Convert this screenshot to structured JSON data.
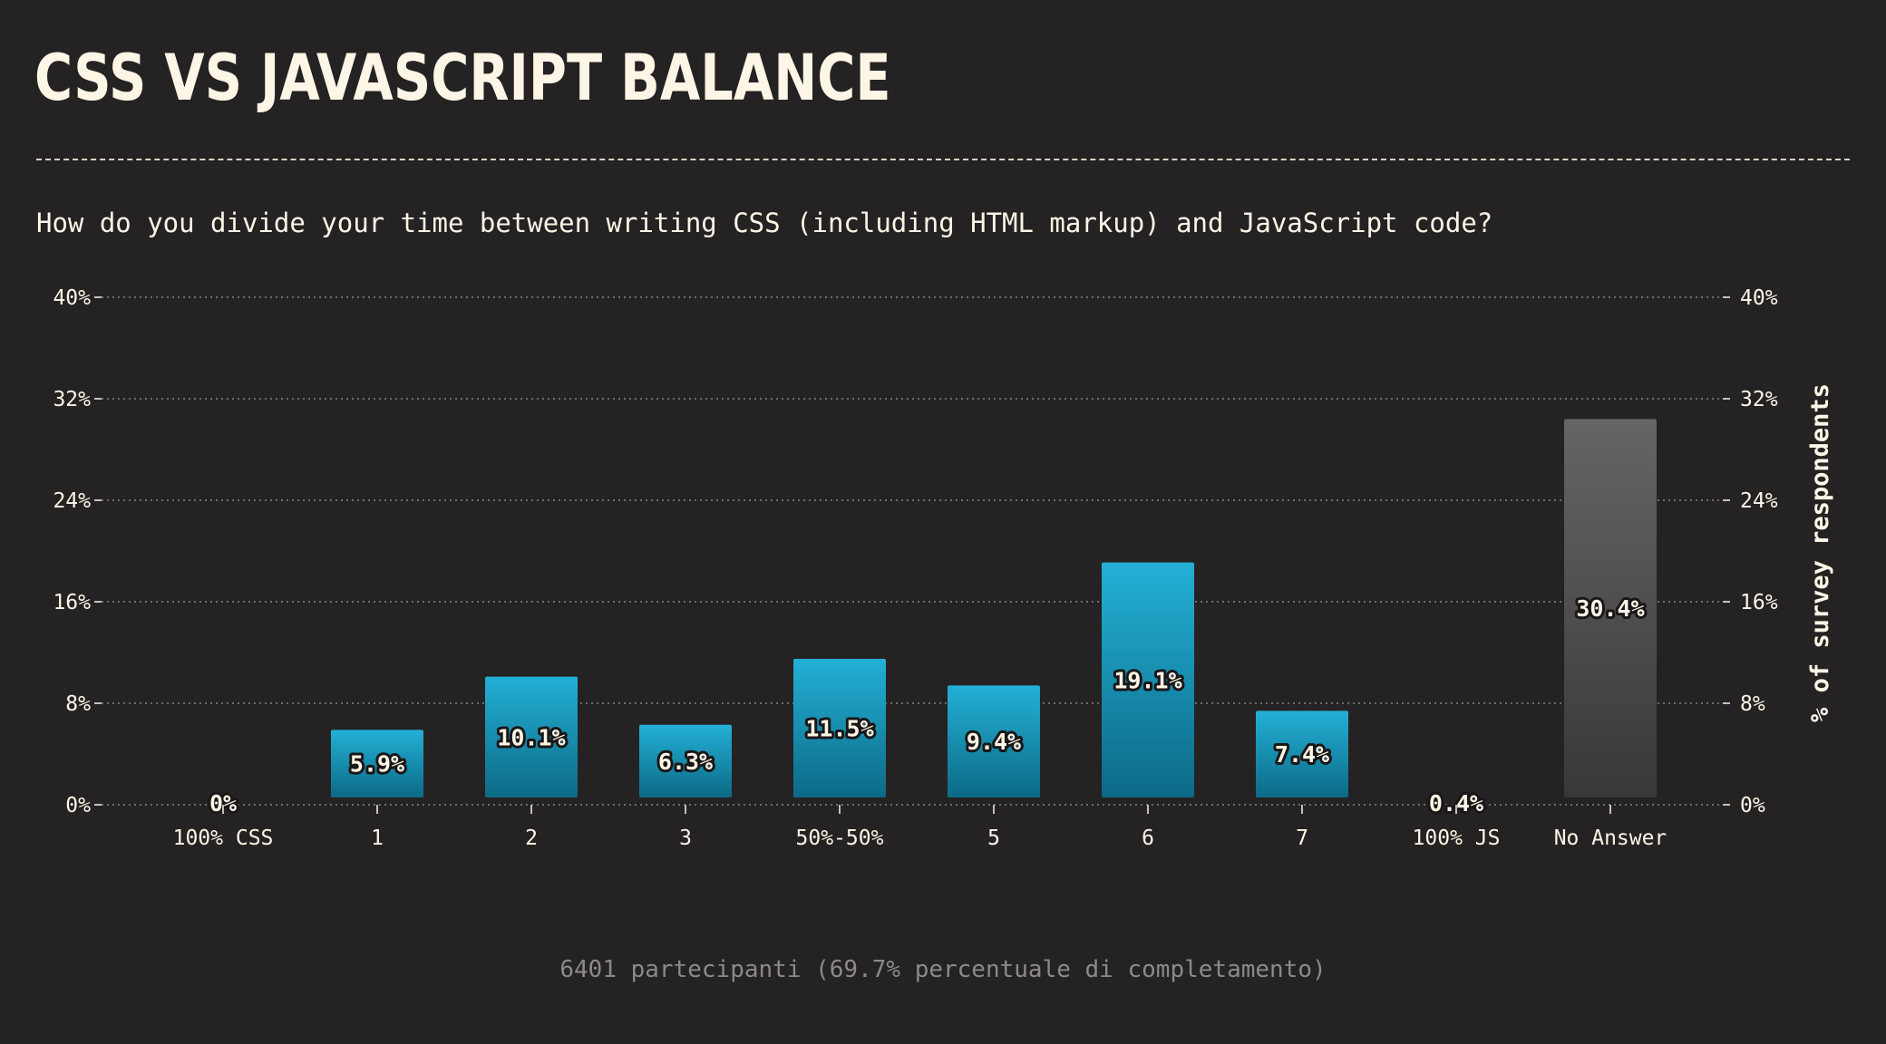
{
  "page": {
    "title": "CSS vs JavaScript Balance",
    "question": "How do you divide your time between writing CSS (including HTML markup) and JavaScript code?",
    "footer": "6401 partecipanti (69.7% percentuale di completamento)"
  },
  "colors": {
    "background": "#252223",
    "text": "#fdf5e6",
    "bar_top": "#23b0d6",
    "bar_bottom": "#0c6a86",
    "no_answer_top": "#666464",
    "no_answer_bottom": "#3a3738",
    "grid": "#8a8584",
    "footer_text": "#8d8988"
  },
  "chart_data": {
    "type": "bar",
    "categories": [
      "100% CSS",
      "1",
      "2",
      "3",
      "50%-50%",
      "5",
      "6",
      "7",
      "100% JS",
      "No Answer"
    ],
    "values": [
      0,
      5.9,
      10.1,
      6.3,
      11.5,
      9.4,
      19.1,
      7.4,
      0.4,
      30.4
    ],
    "labels": [
      "0%",
      "5.9%",
      "10.1%",
      "6.3%",
      "11.5%",
      "9.4%",
      "19.1%",
      "7.4%",
      "0.4%",
      "30.4%"
    ],
    "ylabel": "% of survey respondents",
    "ylim": [
      0,
      40
    ],
    "yticks": [
      0,
      8,
      16,
      24,
      32,
      40
    ],
    "ytick_labels": [
      "0%",
      "8%",
      "16%",
      "24%",
      "32%",
      "40%"
    ],
    "grid": true,
    "legend": "none",
    "special_category": "No Answer"
  }
}
